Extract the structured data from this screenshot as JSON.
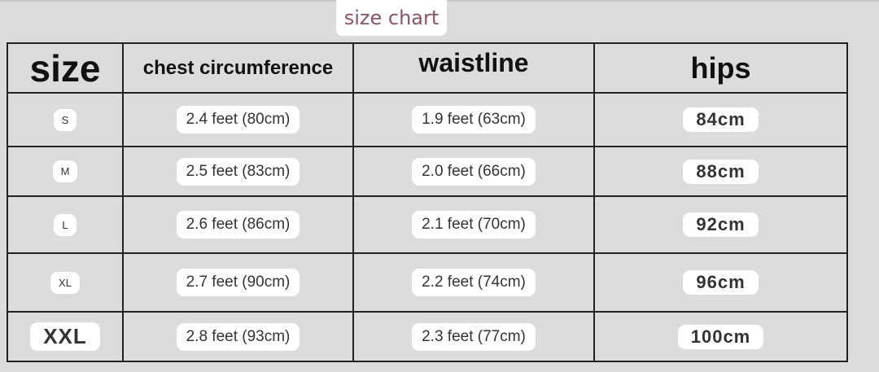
{
  "title": "size chart",
  "headers": [
    "size",
    "chest circumference",
    "waistline",
    "hips"
  ],
  "rows": [
    {
      "size": "S",
      "chest": "2.4 feet (80cm)",
      "waist": "1.9 feet (63cm)",
      "hips": "84cm"
    },
    {
      "size": "M",
      "chest": "2.5 feet (83cm)",
      "waist": "2.0 feet (66cm)",
      "hips": "88cm"
    },
    {
      "size": "L",
      "chest": "2.6 feet (86cm)",
      "waist": "2.1 feet (70cm)",
      "hips": "92cm"
    },
    {
      "size": "XL",
      "chest": "2.7 feet (90cm)",
      "waist": "2.2 feet (74cm)",
      "hips": "96cm"
    },
    {
      "size": "XXL",
      "chest": "2.8 feet (93cm)",
      "waist": "2.3 feet (77cm)",
      "hips": "100cm"
    }
  ]
}
